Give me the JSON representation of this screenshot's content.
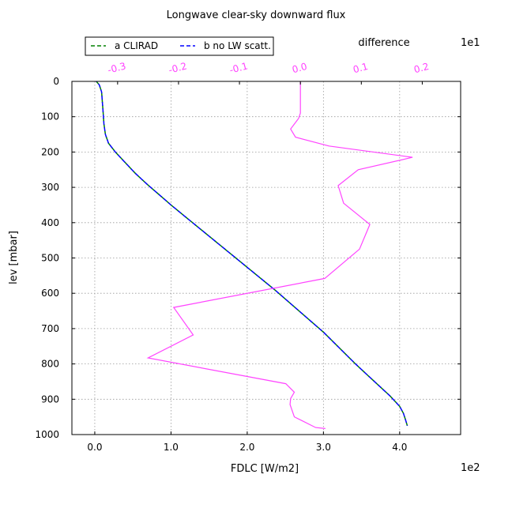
{
  "chart_data": {
    "type": "line",
    "title": "Longwave clear-sky downward flux",
    "xlabel": "FDLC [W/m2]",
    "ylabel": "lev [mbar]",
    "x_multiplier_label": "1e2",
    "top_axis_label": "difference",
    "top_multiplier_label": "1e1",
    "xlim": [
      -0.3,
      4.8
    ],
    "ylim": [
      1000,
      0
    ],
    "top_xlim": [
      -0.375,
      0.263
    ],
    "x_ticks": [
      0.0,
      1.0,
      2.0,
      3.0,
      4.0
    ],
    "x_tick_labels": [
      "0.0",
      "1.0",
      "2.0",
      "3.0",
      "4.0"
    ],
    "y_ticks": [
      0,
      100,
      200,
      300,
      400,
      500,
      600,
      700,
      800,
      900,
      1000
    ],
    "y_tick_labels": [
      "0",
      "100",
      "200",
      "300",
      "400",
      "500",
      "600",
      "700",
      "800",
      "900",
      "1000"
    ],
    "top_ticks": [
      -0.3,
      -0.2,
      -0.1,
      0.0,
      0.1,
      0.2
    ],
    "top_tick_labels": [
      "-0.3",
      "-0.2",
      "-0.1",
      "0.0",
      "0.1",
      "0.2"
    ],
    "grid": true,
    "legend_position": "top-left",
    "series": [
      {
        "name": "a CLIRAD",
        "axis": "bottom",
        "style": "dashed",
        "color": "#008000",
        "points": [
          [
            0.02,
            0
          ],
          [
            0.06,
            10
          ],
          [
            0.09,
            30
          ],
          [
            0.1,
            60
          ],
          [
            0.11,
            90
          ],
          [
            0.12,
            120
          ],
          [
            0.14,
            150
          ],
          [
            0.18,
            175
          ],
          [
            0.27,
            200
          ],
          [
            0.4,
            230
          ],
          [
            0.53,
            260
          ],
          [
            0.68,
            290
          ],
          [
            0.84,
            320
          ],
          [
            1.0,
            350
          ],
          [
            1.17,
            380
          ],
          [
            1.34,
            410
          ],
          [
            1.51,
            440
          ],
          [
            1.68,
            470
          ],
          [
            1.85,
            500
          ],
          [
            2.02,
            530
          ],
          [
            2.19,
            560
          ],
          [
            2.36,
            590
          ],
          [
            2.52,
            620
          ],
          [
            2.68,
            650
          ],
          [
            2.84,
            680
          ],
          [
            3.0,
            710
          ],
          [
            3.14,
            740
          ],
          [
            3.28,
            770
          ],
          [
            3.42,
            800
          ],
          [
            3.57,
            830
          ],
          [
            3.72,
            860
          ],
          [
            3.87,
            890
          ],
          [
            4.0,
            920
          ],
          [
            4.05,
            940
          ],
          [
            4.08,
            960
          ],
          [
            4.1,
            975
          ]
        ]
      },
      {
        "name": "b no LW scatt.",
        "axis": "bottom",
        "style": "dashed",
        "color": "#0000ff",
        "points": [
          [
            0.02,
            0
          ],
          [
            0.06,
            10
          ],
          [
            0.09,
            30
          ],
          [
            0.1,
            60
          ],
          [
            0.11,
            90
          ],
          [
            0.12,
            120
          ],
          [
            0.14,
            150
          ],
          [
            0.18,
            175
          ],
          [
            0.27,
            200
          ],
          [
            0.4,
            230
          ],
          [
            0.53,
            260
          ],
          [
            0.68,
            290
          ],
          [
            0.84,
            320
          ],
          [
            1.0,
            350
          ],
          [
            1.17,
            380
          ],
          [
            1.34,
            410
          ],
          [
            1.51,
            440
          ],
          [
            1.68,
            470
          ],
          [
            1.85,
            500
          ],
          [
            2.02,
            530
          ],
          [
            2.19,
            560
          ],
          [
            2.36,
            590
          ],
          [
            2.52,
            620
          ],
          [
            2.68,
            650
          ],
          [
            2.84,
            680
          ],
          [
            3.0,
            710
          ],
          [
            3.14,
            740
          ],
          [
            3.28,
            770
          ],
          [
            3.42,
            800
          ],
          [
            3.57,
            830
          ],
          [
            3.72,
            860
          ],
          [
            3.87,
            890
          ],
          [
            4.0,
            920
          ],
          [
            4.05,
            940
          ],
          [
            4.08,
            960
          ],
          [
            4.1,
            975
          ]
        ]
      },
      {
        "name": "difference",
        "axis": "top",
        "style": "solid",
        "color": "#ff44ff",
        "points": [
          [
            0.0,
            0
          ],
          [
            0.0,
            90
          ],
          [
            -0.003,
            105
          ],
          [
            -0.016,
            135
          ],
          [
            -0.008,
            158
          ],
          [
            0.047,
            183
          ],
          [
            0.184,
            215
          ],
          [
            0.095,
            250
          ],
          [
            0.062,
            295
          ],
          [
            0.071,
            345
          ],
          [
            0.114,
            405
          ],
          [
            0.097,
            475
          ],
          [
            0.04,
            558
          ],
          [
            -0.208,
            640
          ],
          [
            -0.176,
            718
          ],
          [
            -0.25,
            783
          ],
          [
            -0.024,
            856
          ],
          [
            -0.01,
            880
          ],
          [
            -0.016,
            898
          ],
          [
            -0.017,
            915
          ],
          [
            -0.013,
            935
          ],
          [
            -0.01,
            950
          ],
          [
            0.025,
            980
          ],
          [
            0.041,
            983
          ]
        ]
      }
    ]
  }
}
